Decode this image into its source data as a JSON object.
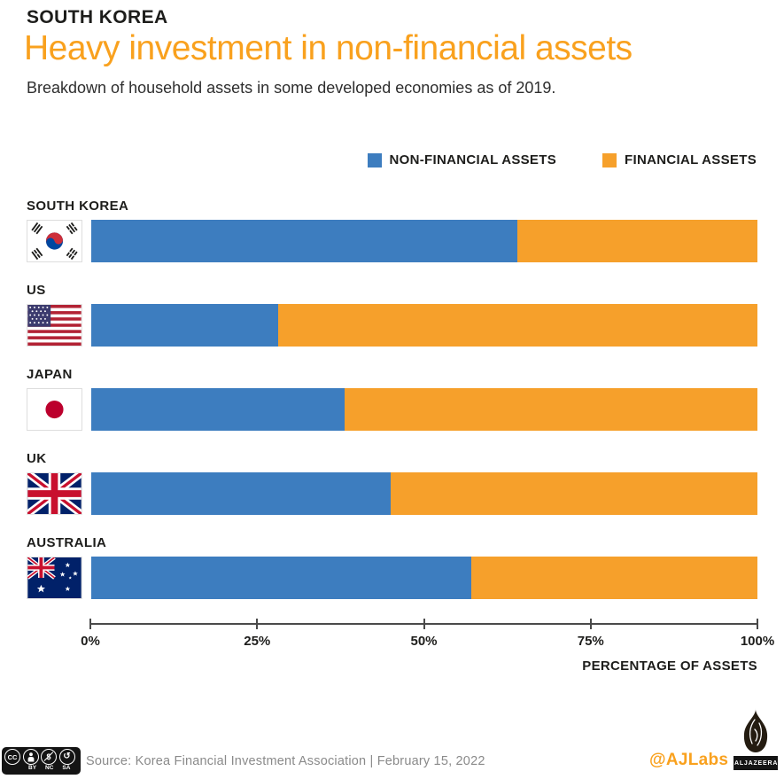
{
  "header": {
    "kicker": "SOUTH KOREA",
    "title": "Heavy investment in non-financial assets",
    "subtitle": "Breakdown of household assets in some developed economies as of 2019."
  },
  "chart_data": {
    "type": "bar",
    "orientation": "horizontal",
    "stacked": true,
    "title": "Heavy investment in non-financial assets",
    "subtitle": "Breakdown of household assets in some developed economies as of 2019.",
    "categories": [
      "SOUTH KOREA",
      "US",
      "JAPAN",
      "UK",
      "AUSTRALIA"
    ],
    "series": [
      {
        "name": "NON-FINANCIAL ASSETS",
        "color": "#3d7dbf",
        "values": [
          64,
          28,
          38,
          45,
          57
        ]
      },
      {
        "name": "FINANCIAL ASSETS",
        "color": "#f6a02b",
        "values": [
          36,
          72,
          62,
          55,
          43
        ]
      }
    ],
    "xlabel": "PERCENTAGE OF ASSETS",
    "x_ticks": [
      "0%",
      "25%",
      "50%",
      "75%",
      "100%"
    ],
    "xlim": [
      0,
      100
    ],
    "grid": false,
    "legend_position": "top-right",
    "units": "percent of household assets"
  },
  "footer": {
    "cc_text": "CC",
    "cc_labels": [
      "BY",
      "NC",
      "SA"
    ],
    "source": "Source: Korea Financial Investment Association  |  February 15, 2022",
    "credit": "@AJLabs",
    "brand": "ALJAZEERA"
  },
  "colors": {
    "accent_orange": "#f9a11e",
    "bar_blue": "#3d7dbf",
    "bar_orange": "#f6a02b",
    "text_dark": "#1d1d1b",
    "source_gray": "#8a8a8a",
    "axis_gray": "#4a4a4a"
  }
}
